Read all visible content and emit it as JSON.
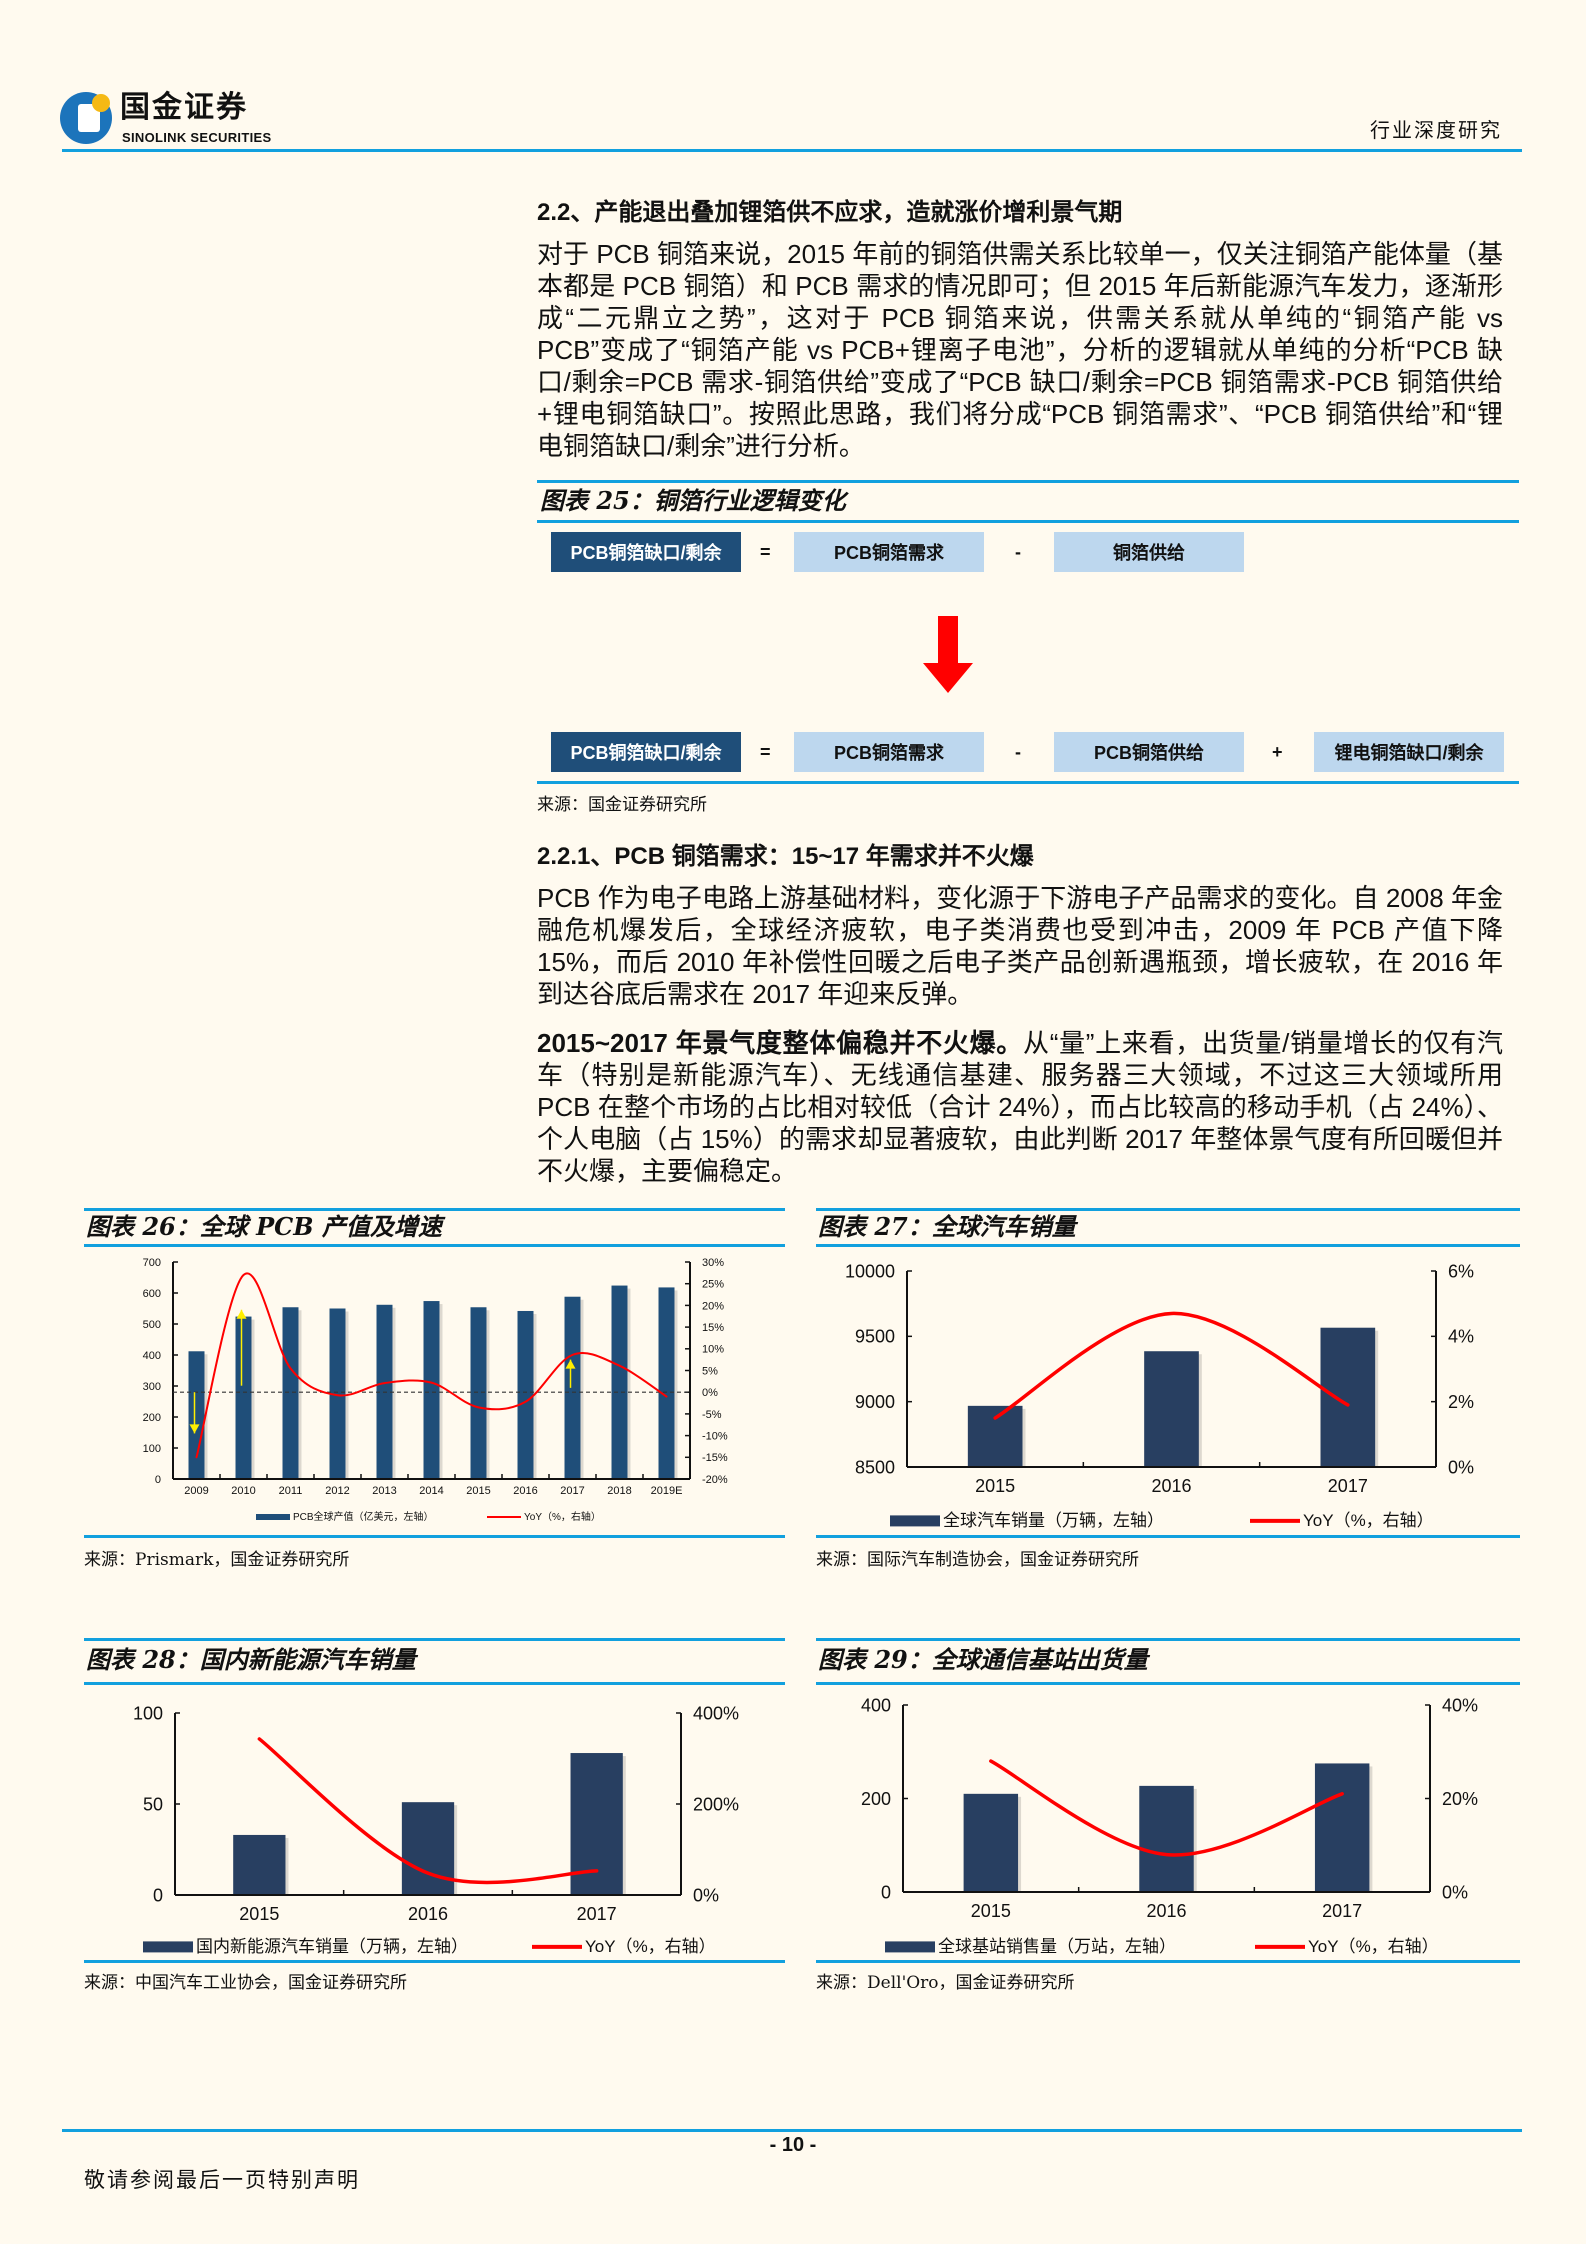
{
  "header": {
    "logo_cn": "国金证券",
    "logo_en": "SINOLINK SECURITIES",
    "report_type": "行业深度研究"
  },
  "section_2_2": {
    "title": "2.2、产能退出叠加锂箔供不应求，造就涨价增利景气期",
    "paragraph": "对于 PCB 铜箔来说，2015 年前的铜箔供需关系比较单一，仅关注铜箔产能体量（基本都是 PCB 铜箔）和 PCB 需求的情况即可；但 2015 年后新能源汽车发力，逐渐形成“二元鼎立之势”，这对于 PCB 铜箔来说，供需关系就从单纯的“铜箔产能 vs PCB”变成了“铜箔产能 vs PCB+锂离子电池”，分析的逻辑就从单纯的分析“PCB 缺口/剩余=PCB 需求-铜箔供给”变成了“PCB 缺口/剩余=PCB 铜箔需求-PCB 铜箔供给+锂电铜箔缺口”。按照此思路，我们将分成“PCB 铜箔需求”、“PCB 铜箔供给”和“锂电铜箔缺口/剩余”进行分析。"
  },
  "figure_25": {
    "title": "图表 25：铜箔行业逻辑变化",
    "row1": [
      "PCB铜箔缺口/剩余",
      "=",
      "PCB铜箔需求",
      "-",
      "铜箔供给"
    ],
    "row2": [
      "PCB铜箔缺口/剩余",
      "=",
      "PCB铜箔需求",
      "-",
      "PCB铜箔供给",
      "+",
      "锂电铜箔缺口/剩余"
    ],
    "arrow_color": "#FF0000",
    "source": "来源：国金证券研究所"
  },
  "section_2_2_1": {
    "title": "2.2.1、PCB 铜箔需求：15~17 年需求并不火爆",
    "paragraph1": "PCB 作为电子电路上游基础材料，变化源于下游电子产品需求的变化。自 2008 年金融危机爆发后，全球经济疲软，电子类消费也受到冲击，2009 年 PCB 产值下降 15%，而后 2010 年补偿性回暖之后电子类产品创新遇瓶颈，增长疲软，在 2016 年到达谷底后需求在 2017 年迎来反弹。",
    "paragraph2_bold": "2015~2017 年景气度整体偏稳并不火爆。",
    "paragraph2_rest": "从“量”上来看，出货量/销量增长的仅有汽车（特别是新能源汽车）、无线通信基建、服务器三大领域，不过这三大领域所用 PCB 在整个市场的占比相对较低（合计 24%），而占比较高的移动手机（占 24%）、个人电脑（占 15%）的需求却显著疲软，由此判断 2017 年整体景气度有所回暖但并不火爆，主要偏稳定。"
  },
  "figures": [
    {
      "title": "图表 26：全球 PCB 产值及增速",
      "source": "来源：Prismark，国金证券研究所"
    },
    {
      "title": "图表 27：全球汽车销量",
      "source": "来源：国际汽车制造协会，国金证券研究所"
    },
    {
      "title": "图表 28：国内新能源汽车销量",
      "source": "来源：中国汽车工业协会，国金证券研究所"
    },
    {
      "title": "图表 29：全球通信基站出货量",
      "source": "来源：Dell'Oro，国金证券研究所"
    }
  ],
  "chart_data": [
    {
      "type": "bar+line",
      "categories": [
        "2009",
        "2010",
        "2011",
        "2012",
        "2013",
        "2014",
        "2015",
        "2016",
        "2017",
        "2018",
        "2019E"
      ],
      "series": [
        {
          "name": "PCB全球产值（亿美元，左轴）",
          "type": "bar",
          "axis": "left",
          "values": [
            412,
            524,
            554,
            550,
            562,
            574,
            554,
            542,
            588,
            624,
            618
          ]
        },
        {
          "name": "YoY（%，右轴）",
          "type": "line",
          "axis": "right",
          "values": [
            -15,
            27,
            5.5,
            -0.7,
            2.1,
            2.2,
            -3.5,
            -2.2,
            8.6,
            6.1,
            -1.0
          ]
        }
      ],
      "left_ylim": [
        0,
        700
      ],
      "left_ticks": [
        "0",
        "100",
        "200",
        "300",
        "400",
        "500",
        "600",
        "700"
      ],
      "right_ylim": [
        -20,
        30
      ],
      "right_ticks": [
        "-20%",
        "-15%",
        "-10%",
        "-5%",
        "0%",
        "5%",
        "10%",
        "15%",
        "20%",
        "25%",
        "30%"
      ],
      "zero_reference_line": "dashed at 0%",
      "annotations": "yellow arrows at 2009 (down), 2010 (up), 2017 (up)",
      "legend": "bottom",
      "colors": {
        "bar": "#1F4E79",
        "line": "#FF0000"
      }
    },
    {
      "type": "bar+line",
      "categories": [
        "2015",
        "2016",
        "2017"
      ],
      "series": [
        {
          "name": "全球汽车销量（万辆，左轴）",
          "type": "bar",
          "axis": "left",
          "values": [
            8968,
            9386,
            9566
          ]
        },
        {
          "name": "YoY（%，右轴）",
          "type": "line",
          "axis": "right",
          "values": [
            1.5,
            4.7,
            1.9
          ]
        }
      ],
      "left_ylim": [
        8500,
        10000
      ],
      "left_ticks": [
        "8500",
        "9000",
        "9500",
        "10000"
      ],
      "right_ylim": [
        0,
        6
      ],
      "right_ticks": [
        "0%",
        "2%",
        "4%",
        "6%"
      ],
      "legend": "bottom",
      "colors": {
        "bar": "#283F61",
        "line": "#FF0000"
      }
    },
    {
      "type": "bar+line",
      "categories": [
        "2015",
        "2016",
        "2017"
      ],
      "series": [
        {
          "name": "国内新能源汽车销量（万辆，左轴）",
          "type": "bar",
          "axis": "left",
          "values": [
            33,
            51,
            78
          ]
        },
        {
          "name": "YoY（%，右轴）",
          "type": "line",
          "axis": "right",
          "values": [
            343,
            48,
            53
          ]
        }
      ],
      "left_ylim": [
        0,
        100
      ],
      "left_ticks": [
        "0",
        "50",
        "100"
      ],
      "right_ylim": [
        0,
        400
      ],
      "right_ticks": [
        "0%",
        "200%",
        "400%"
      ],
      "legend": "bottom",
      "colors": {
        "bar": "#283F61",
        "line": "#FF0000"
      }
    },
    {
      "type": "bar+line",
      "categories": [
        "2015",
        "2016",
        "2017"
      ],
      "series": [
        {
          "name": "全球基站销售量（万站，左轴）",
          "type": "bar",
          "axis": "left",
          "values": [
            210,
            227,
            275
          ]
        },
        {
          "name": "YoY（%，右轴）",
          "type": "line",
          "axis": "right",
          "values": [
            28,
            8,
            21
          ]
        }
      ],
      "left_ylim": [
        0,
        400
      ],
      "left_ticks": [
        "0",
        "200",
        "400"
      ],
      "right_ylim": [
        0,
        40
      ],
      "right_ticks": [
        "0%",
        "20%",
        "40%"
      ],
      "legend": "bottom",
      "colors": {
        "bar": "#283F61",
        "line": "#FF0000"
      }
    }
  ],
  "footer": {
    "page_number": "- 10 -",
    "disclaimer": "敬请参阅最后一页特别声明"
  }
}
